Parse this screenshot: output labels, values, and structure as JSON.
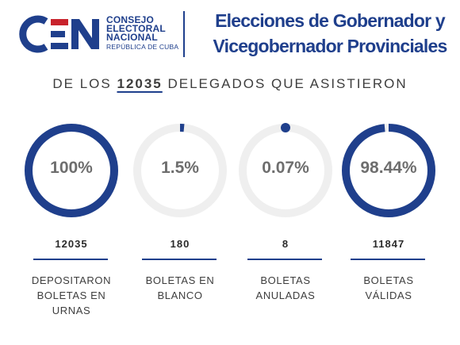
{
  "header": {
    "logo_mark": "CEN",
    "logo_lines": [
      "CONSEJO",
      "ELECTORAL",
      "NACIONAL",
      "REPÚBLICA DE CUBA"
    ],
    "title_line1": "Elecciones de Gobernador y",
    "title_line2": "Vicegobernador Provinciales"
  },
  "subtitle": {
    "prefix": "DE LOS ",
    "number": "12035",
    "suffix": " DELEGADOS QUE ASISTIERON"
  },
  "stats": [
    {
      "percent_label": "100%",
      "percent_value": 100,
      "count": "12035",
      "desc_lines": [
        "DEPOSITARON",
        "BOLETAS EN",
        "URNAS"
      ]
    },
    {
      "percent_label": "1.5%",
      "percent_value": 1.5,
      "count": "180",
      "desc_lines": [
        "BOLETAS EN",
        "BLANCO"
      ]
    },
    {
      "percent_label": "0.07%",
      "percent_value": 0.07,
      "count": "8",
      "desc_lines": [
        "BOLETAS",
        "ANULADAS"
      ]
    },
    {
      "percent_label": "98.44%",
      "percent_value": 98.44,
      "count": "11847",
      "desc_lines": [
        "BOLETAS",
        "VÁLIDAS"
      ]
    }
  ],
  "colors": {
    "accent": "#1f3f8c",
    "track": "#efefef",
    "percent_text": "#6e6e6e"
  }
}
